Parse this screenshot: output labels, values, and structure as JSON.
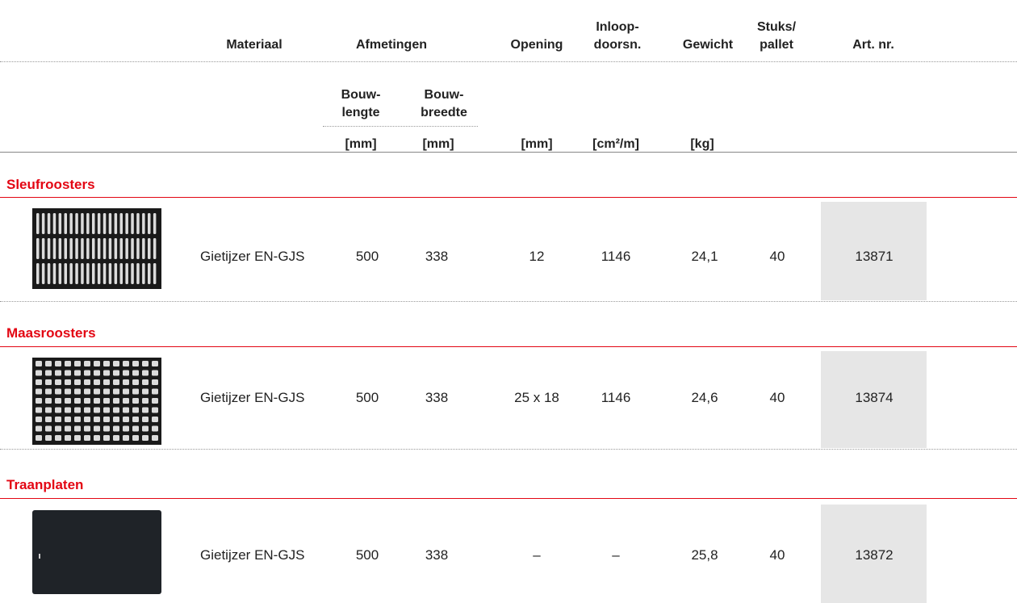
{
  "header": {
    "columns": [
      "Materiaal",
      "Afmetingen",
      "Opening",
      "Inloop-\ndoorsn.",
      "Gewicht",
      "Stuks/\npallet",
      "Art. nr."
    ],
    "subcolumns": [
      "Bouw-\nlengte",
      "Bouw-\nbreedte"
    ],
    "units": [
      "[mm]",
      "[mm]",
      "[mm]",
      "[cm²/m]",
      "[kg]"
    ]
  },
  "sections": [
    {
      "title": "Sleufroosters",
      "row": [
        "Gietijzer EN-GJS",
        "500",
        "338",
        "12",
        "1146",
        "24,1",
        "40",
        "13871"
      ]
    },
    {
      "title": "Maasroosters",
      "row": [
        "Gietijzer EN-GJS",
        "500",
        "338",
        "25 x 18",
        "1146",
        "24,6",
        "40",
        "13874"
      ]
    },
    {
      "title": "Traanplaten",
      "row": [
        "Gietijzer EN-GJS",
        "500",
        "338",
        "–",
        "–",
        "25,8",
        "40",
        "13872"
      ]
    }
  ]
}
